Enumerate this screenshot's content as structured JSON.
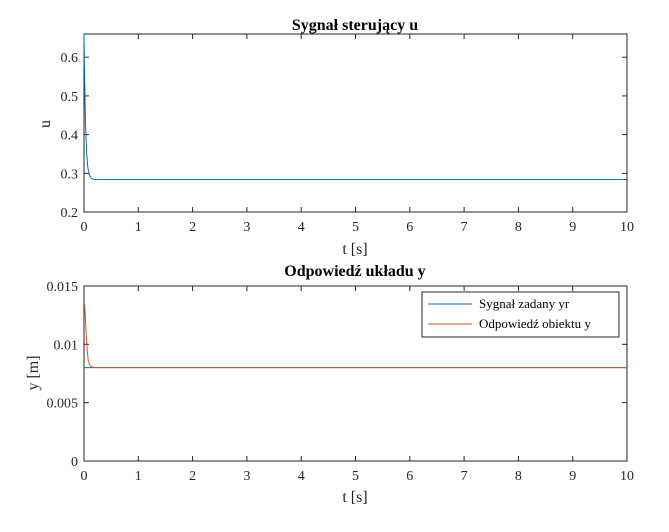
{
  "chart_data": [
    {
      "type": "line",
      "title": "Sygnał sterujący u",
      "xlabel": "t [s]",
      "ylabel": "u",
      "xlim": [
        0,
        10
      ],
      "ylim": [
        0.2,
        0.66
      ],
      "xticks": [
        "0",
        "1",
        "2",
        "3",
        "4",
        "5",
        "6",
        "7",
        "8",
        "9",
        "10"
      ],
      "yticks": [
        "0.2",
        "0.3",
        "0.4",
        "0.5",
        "0.6"
      ],
      "grid": false,
      "series": [
        {
          "color": "#0072BD",
          "x": [
            0,
            0.01,
            0.02,
            0.03,
            0.05,
            0.07,
            0.1,
            0.13,
            0.16,
            0.2,
            0.3,
            0.5,
            1,
            2,
            4,
            6,
            8,
            10
          ],
          "y": [
            0.66,
            0.56,
            0.48,
            0.42,
            0.35,
            0.315,
            0.296,
            0.288,
            0.285,
            0.284,
            0.284,
            0.284,
            0.284,
            0.284,
            0.284,
            0.284,
            0.284,
            0.284
          ]
        }
      ]
    },
    {
      "type": "line",
      "title": "Odpowiedź układu y",
      "xlabel": "t [s]",
      "ylabel": "y [m]",
      "xlim": [
        0,
        10
      ],
      "ylim": [
        0,
        0.015
      ],
      "xticks": [
        "0",
        "1",
        "2",
        "3",
        "4",
        "5",
        "6",
        "7",
        "8",
        "9",
        "10"
      ],
      "yticks": [
        "0",
        "0.005",
        "0.01",
        "0.015"
      ],
      "grid": false,
      "legend_position": "top-right",
      "series": [
        {
          "name": "Sygnał zadany yr",
          "color": "#0072BD",
          "x": [
            0,
            10
          ],
          "y": [
            0.008,
            0.008
          ]
        },
        {
          "name": "Odpowiedź obiektu y",
          "color": "#D95319",
          "x": [
            0,
            0.01,
            0.02,
            0.03,
            0.04,
            0.06,
            0.08,
            0.1,
            0.13,
            0.16,
            0.2,
            0.3,
            1,
            2,
            5,
            10
          ],
          "y": [
            0.0132,
            0.0133,
            0.0128,
            0.0119,
            0.0109,
            0.0094,
            0.0086,
            0.0083,
            0.0081,
            0.00805,
            0.008,
            0.008,
            0.008,
            0.008,
            0.008,
            0.008
          ]
        }
      ]
    }
  ]
}
